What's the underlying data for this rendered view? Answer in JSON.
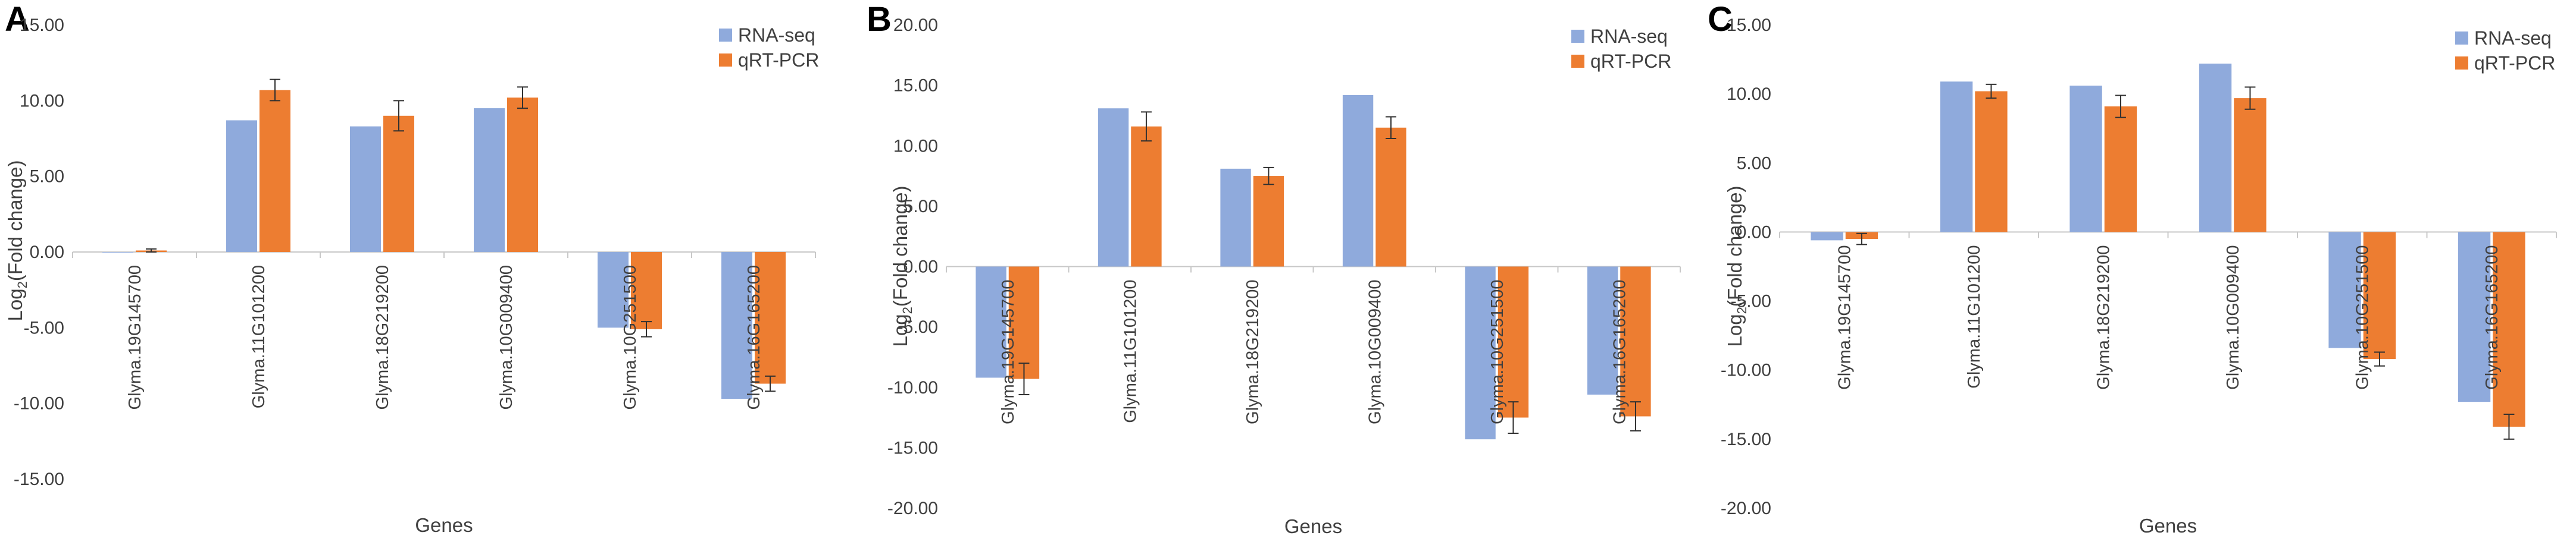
{
  "colors": {
    "rna_seq": "#8faadc",
    "qrt_pcr": "#ed7d31",
    "axis": "#c8c8c8",
    "text": "#404040",
    "error_bar": "#303030"
  },
  "chart_data": [
    {
      "panel": "A",
      "type": "bar",
      "xlabel": "Genes",
      "ylabel": "Log",
      "ylabel_sub": "2",
      "ylabel_rest": "(Fold change)",
      "ylim": [
        -15,
        15
      ],
      "yticks": [
        "15.00",
        "10.00",
        "5.00",
        "0.00",
        "-5.00",
        "-10.00",
        "-15.00"
      ],
      "legend": "top-right",
      "grid": false,
      "categories": [
        "Glyma.19G145700",
        "Glyma.11G101200",
        "Glyma.18G219200",
        "Glyma.10G009400",
        "Glyma.10G251500",
        "Glyma.16G165200"
      ],
      "series": [
        {
          "name": "RNA-seq",
          "values": [
            0.0,
            8.7,
            8.3,
            9.5,
            -5.0,
            -9.7
          ]
        },
        {
          "name": "qRT-PCR",
          "values": [
            0.1,
            10.7,
            9.0,
            10.2,
            -5.1,
            -8.7
          ],
          "errors": [
            0.1,
            0.7,
            1.0,
            0.7,
            0.5,
            0.5
          ]
        }
      ]
    },
    {
      "panel": "B",
      "type": "bar",
      "xlabel": "Genes",
      "ylabel": "Log",
      "ylabel_sub": "2",
      "ylabel_rest": "(Fold change)",
      "ylim": [
        -20,
        20
      ],
      "yticks": [
        "20.00",
        "15.00",
        "10.00",
        "5.00",
        "0.00",
        "-5.00",
        "-10.00",
        "-15.00",
        "-20.00"
      ],
      "legend": "top-right",
      "grid": false,
      "categories": [
        "Glyma.19G145700",
        "Glyma.11G101200",
        "Glyma.18G219200",
        "Glyma.10G009400",
        "Glyma.10G251500",
        "Glyma.16G165200"
      ],
      "series": [
        {
          "name": "RNA-seq",
          "values": [
            -9.2,
            13.1,
            8.1,
            14.2,
            -14.3,
            -10.6
          ]
        },
        {
          "name": "qRT-PCR",
          "values": [
            -9.3,
            11.6,
            7.5,
            11.5,
            -12.5,
            -12.4
          ],
          "errors": [
            1.3,
            1.2,
            0.7,
            0.9,
            1.3,
            1.2
          ]
        }
      ]
    },
    {
      "panel": "C",
      "type": "bar",
      "xlabel": "Genes",
      "ylabel": "Log",
      "ylabel_sub": "2",
      "ylabel_rest": "(Fold change)",
      "ylim": [
        -20,
        15
      ],
      "yticks": [
        "15.00",
        "10.00",
        "5.00",
        "0.00",
        "-5.00",
        "-10.00",
        "-15.00",
        "-20.00"
      ],
      "legend": "top-right",
      "grid": false,
      "categories": [
        "Glyma.19G145700",
        "Glyma.11G101200",
        "Glyma.18G219200",
        "Glyma.10G009400",
        "Glyma.10G251500",
        "Glyma.16G165200"
      ],
      "series": [
        {
          "name": "RNA-seq",
          "values": [
            -0.6,
            10.9,
            10.6,
            12.2,
            -8.4,
            -12.3
          ]
        },
        {
          "name": "qRT-PCR",
          "values": [
            -0.5,
            10.2,
            9.1,
            9.7,
            -9.2,
            -14.1
          ],
          "errors": [
            0.4,
            0.5,
            0.8,
            0.8,
            0.5,
            0.9
          ]
        }
      ]
    }
  ]
}
